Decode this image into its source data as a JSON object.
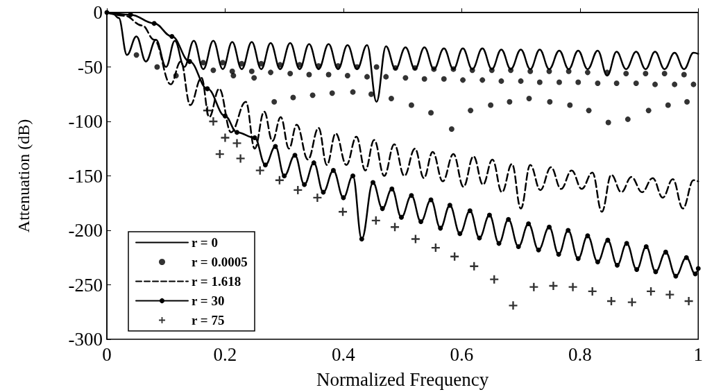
{
  "chart_data": {
    "type": "line",
    "xlabel": "Normalized Frequency",
    "ylabel": "Attenuation (dB)",
    "xlim": [
      0,
      1
    ],
    "xticks": [
      0,
      0.2,
      0.4,
      0.6,
      0.8,
      1
    ],
    "ylim": [
      -300,
      0
    ],
    "yticks": [
      -300,
      -250,
      -200,
      -150,
      -100,
      -50,
      0
    ],
    "grid": false,
    "legend": "bottom left",
    "series": [
      {
        "name": "r = 0",
        "type": "line",
        "color": "#000000",
        "marker": "none",
        "line_style": "solid",
        "x": [
          0,
          0.01,
          0.02,
          0.034,
          0.05,
          0.066,
          0.083,
          0.1,
          0.115,
          0.131,
          0.147,
          0.163,
          0.18,
          0.196,
          0.212,
          0.228,
          0.245,
          0.261,
          0.277,
          0.293,
          0.31,
          0.326,
          0.342,
          0.358,
          0.375,
          0.391,
          0.407,
          0.423,
          0.44,
          0.456,
          0.472,
          0.488,
          0.505,
          0.521,
          0.537,
          0.553,
          0.57,
          0.586,
          0.602,
          0.618,
          0.635,
          0.651,
          0.667,
          0.683,
          0.7,
          0.716,
          0.732,
          0.748,
          0.765,
          0.781,
          0.797,
          0.813,
          0.83,
          0.846,
          0.862,
          0.878,
          0.895,
          0.911,
          0.927,
          0.943,
          0.96,
          0.976,
          0.992,
          1
        ],
        "values": [
          0,
          -1,
          -5,
          -39,
          -22,
          -45,
          -25,
          -50,
          -26,
          -50,
          -26,
          -52,
          -26,
          -52,
          -27,
          -52,
          -27,
          -52,
          -28,
          -52,
          -28,
          -52,
          -29,
          -52,
          -29,
          -52,
          -30,
          -52,
          -30,
          -82,
          -31,
          -52,
          -32,
          -52,
          -32,
          -52,
          -33,
          -52,
          -33,
          -52,
          -33,
          -52,
          -34,
          -52,
          -34,
          -52,
          -34,
          -52,
          -35,
          -52,
          -35,
          -52,
          -35,
          -58,
          -36,
          -52,
          -36,
          -52,
          -36,
          -52,
          -37,
          -52,
          -37,
          -38
        ]
      },
      {
        "name": "r = 0.0005",
        "type": "scatter",
        "color": "#000000",
        "marker": "circle",
        "x": [
          0.05,
          0.085,
          0.117,
          0.214,
          0.249,
          0.283,
          0.315,
          0.348,
          0.381,
          0.416,
          0.447,
          0.481,
          0.515,
          0.548,
          0.583,
          0.615,
          0.649,
          0.681,
          0.714,
          0.749,
          0.783,
          0.815,
          0.848,
          0.881,
          0.916,
          0.949,
          0.981,
          0.163,
          0.196,
          0.228,
          0.261,
          0.293,
          0.326,
          0.358,
          0.391,
          0.423,
          0.456,
          0.488,
          0.521,
          0.553,
          0.586,
          0.618,
          0.651,
          0.683,
          0.716,
          0.748,
          0.781,
          0.813,
          0.846,
          0.878,
          0.911,
          0.943,
          0.976,
          0.18,
          0.212,
          0.245,
          0.277,
          0.31,
          0.342,
          0.375,
          0.407,
          0.44,
          0.472,
          0.505,
          0.537,
          0.57,
          0.602,
          0.635,
          0.667,
          0.7,
          0.732,
          0.765,
          0.797,
          0.83,
          0.862,
          0.895,
          0.927,
          0.96,
          0.992
        ],
        "values": [
          -39,
          -50,
          -58,
          -58,
          -60,
          -82,
          -78,
          -76,
          -74,
          -73,
          -75,
          -79,
          -85,
          -92,
          -107,
          -90,
          -85,
          -82,
          -79,
          -82,
          -85,
          -90,
          -101,
          -98,
          -90,
          -85,
          -82,
          -46,
          -46,
          -47,
          -47,
          -48,
          -48,
          -49,
          -49,
          -50,
          -50,
          -51,
          -51,
          -52,
          -52,
          -53,
          -53,
          -53,
          -54,
          -54,
          -54,
          -55,
          -55,
          -56,
          -56,
          -56,
          -57,
          -53,
          -54,
          -54,
          -55,
          -56,
          -57,
          -57,
          -58,
          -59,
          -59,
          -60,
          -61,
          -61,
          -62,
          -62,
          -63,
          -63,
          -64,
          -64,
          -64,
          -65,
          -65,
          -65,
          -66,
          -66,
          -66
        ]
      },
      {
        "name": "r = 1.618",
        "type": "line",
        "color": "#000000",
        "marker": "none",
        "line_style": "dashed",
        "x": [
          0,
          0.03,
          0.06,
          0.08,
          0.108,
          0.125,
          0.141,
          0.16,
          0.173,
          0.19,
          0.21,
          0.235,
          0.25,
          0.266,
          0.28,
          0.294,
          0.308,
          0.321,
          0.34,
          0.358,
          0.372,
          0.387,
          0.405,
          0.422,
          0.437,
          0.452,
          0.469,
          0.486,
          0.503,
          0.521,
          0.536,
          0.551,
          0.568,
          0.586,
          0.603,
          0.62,
          0.636,
          0.652,
          0.668,
          0.685,
          0.7,
          0.716,
          0.733,
          0.751,
          0.768,
          0.786,
          0.803,
          0.821,
          0.837,
          0.853,
          0.87,
          0.887,
          0.905,
          0.923,
          0.94,
          0.957,
          0.974,
          0.992,
          1
        ],
        "values": [
          0,
          -3,
          -12,
          -25,
          -66,
          -45,
          -85,
          -60,
          -96,
          -70,
          -110,
          -82,
          -125,
          -91,
          -118,
          -96,
          -125,
          -103,
          -135,
          -106,
          -140,
          -111,
          -140,
          -114,
          -145,
          -117,
          -150,
          -121,
          -150,
          -125,
          -152,
          -128,
          -155,
          -130,
          -160,
          -132,
          -158,
          -135,
          -165,
          -139,
          -180,
          -140,
          -163,
          -142,
          -162,
          -145,
          -162,
          -147,
          -183,
          -149,
          -165,
          -151,
          -165,
          -152,
          -170,
          -153,
          -180,
          -154,
          -155
        ]
      },
      {
        "name": "r = 30",
        "type": "line",
        "color": "#000000",
        "marker": "circle",
        "line_style": "solid",
        "x": [
          0,
          0.04,
          0.08,
          0.11,
          0.14,
          0.17,
          0.2,
          0.22,
          0.25,
          0.268,
          0.285,
          0.3,
          0.318,
          0.334,
          0.35,
          0.366,
          0.383,
          0.4,
          0.416,
          0.431,
          0.45,
          0.466,
          0.482,
          0.498,
          0.515,
          0.531,
          0.548,
          0.564,
          0.58,
          0.597,
          0.614,
          0.63,
          0.647,
          0.663,
          0.679,
          0.696,
          0.713,
          0.73,
          0.748,
          0.764,
          0.78,
          0.797,
          0.813,
          0.83,
          0.847,
          0.863,
          0.879,
          0.896,
          0.912,
          0.928,
          0.945,
          0.962,
          0.98,
          0.995,
          1
        ],
        "values": [
          0,
          -2,
          -10,
          -22,
          -45,
          -70,
          -95,
          -110,
          -115,
          -140,
          -123,
          -150,
          -131,
          -158,
          -138,
          -165,
          -145,
          -170,
          -150,
          -208,
          -156,
          -180,
          -162,
          -188,
          -168,
          -192,
          -172,
          -198,
          -177,
          -203,
          -182,
          -207,
          -186,
          -212,
          -190,
          -215,
          -194,
          -218,
          -197,
          -222,
          -200,
          -226,
          -205,
          -229,
          -209,
          -232,
          -212,
          -236,
          -215,
          -238,
          -220,
          -242,
          -225,
          -240,
          -235
        ]
      },
      {
        "name": "r = 75",
        "type": "scatter",
        "color": "#000000",
        "marker": "cross",
        "x": [
          0.17,
          0.18,
          0.191,
          0.2,
          0.22,
          0.226,
          0.259,
          0.292,
          0.323,
          0.356,
          0.399,
          0.455,
          0.487,
          0.522,
          0.556,
          0.588,
          0.621,
          0.655,
          0.687,
          0.722,
          0.755,
          0.788,
          0.821,
          0.853,
          0.888,
          0.92,
          0.952,
          0.984
        ],
        "values": [
          -90,
          -100,
          -130,
          -115,
          -120,
          -134,
          -145,
          -154,
          -163,
          -170,
          -183,
          -191,
          -197,
          -208,
          -216,
          -224,
          -233,
          -245,
          -269,
          -252,
          -251,
          -252,
          -256,
          -265,
          -266,
          -256,
          -259,
          -265
        ]
      }
    ]
  }
}
